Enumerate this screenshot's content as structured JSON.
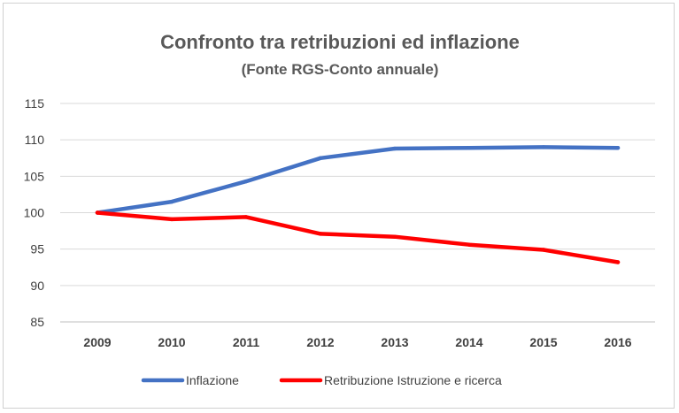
{
  "chart_data": {
    "type": "line",
    "title": "Confronto tra retribuzioni ed inflazione",
    "subtitle": "(Fonte RGS-Conto annuale)",
    "x": [
      "2009",
      "2010",
      "2011",
      "2012",
      "2013",
      "2014",
      "2015",
      "2016"
    ],
    "ylim": [
      85,
      115
    ],
    "yticks": [
      85,
      90,
      95,
      100,
      105,
      110,
      115
    ],
    "grid": true,
    "legend_position": "bottom",
    "series": [
      {
        "name": "Inflazione",
        "color": "#4472c4",
        "values": [
          100,
          101.5,
          104.3,
          107.5,
          108.8,
          108.9,
          109.0,
          108.9
        ]
      },
      {
        "name": "Retribuzione Istruzione e ricerca",
        "color": "#ff0000",
        "values": [
          100,
          99.1,
          99.4,
          97.1,
          96.7,
          95.6,
          94.9,
          93.2
        ]
      }
    ]
  }
}
